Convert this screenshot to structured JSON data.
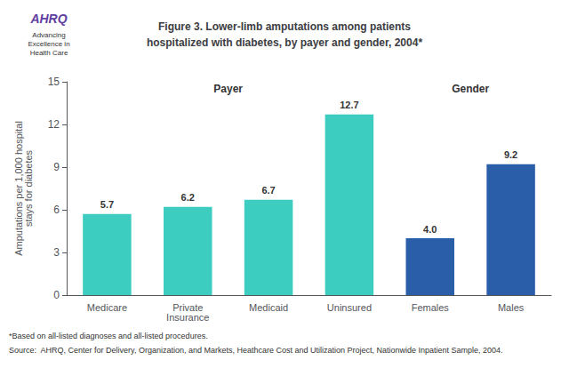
{
  "chart_data": {
    "type": "bar",
    "title": "Figure 3. Lower-limb amputations among patients\nhospitalized with diabetes, by payer and gender, 2004*",
    "categories": [
      "Medicare",
      "Private\nInsurance",
      "Medicaid",
      "Uninsured",
      "Females",
      "Males"
    ],
    "values": [
      5.7,
      6.2,
      6.7,
      12.7,
      4.0,
      9.2
    ],
    "value_labels": [
      "5.7",
      "6.2",
      "6.7",
      "12.7",
      "4.0",
      "9.2"
    ],
    "colors": [
      "#3DCCC0",
      "#3DCCC0",
      "#3DCCC0",
      "#3DCCC0",
      "#2B5EA8",
      "#2B5EA8"
    ],
    "ylabel": "Amputations per 1,000 hospital\nstays for diabetes",
    "ylim": [
      0,
      15
    ],
    "yticks": [
      0,
      3,
      6,
      9,
      12,
      15
    ],
    "grid": false,
    "data_labels": true,
    "annotations": [
      "Payer",
      "Gender"
    ],
    "footnotes": [
      "*Based on all-listed diagnoses and all-listed procedures.",
      "Source:  AHRQ, Center for Delivery, Organization, and Markets, Heathcare Cost and Utilization Project, Nationwide Inpatient Sample, 2004."
    ],
    "logo_text": [
      "AHRQ",
      "Advancing\nExcellence in\nHealth Care"
    ]
  }
}
